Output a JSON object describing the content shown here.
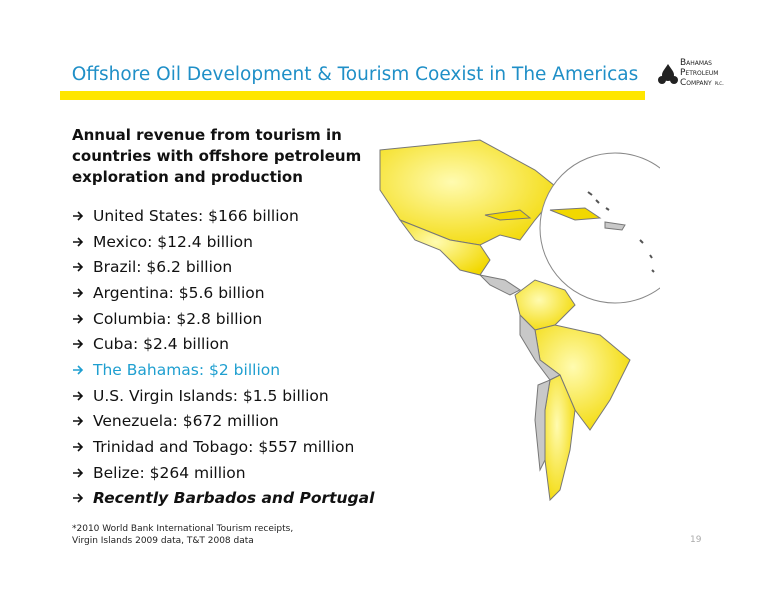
{
  "header": {
    "title": "Offshore Oil Development & Tourism Coexist in The Americas",
    "logo": [
      "Bahamas",
      "Petroleum",
      "Company",
      "plc."
    ]
  },
  "subheading": "Annual revenue from tourism in countries with offshore petroleum exploration and production",
  "bullets": [
    "United States: $166 billion",
    "Mexico: $12.4 billion",
    "Brazil: $6.2 billion",
    "Argentina: $5.6 billion",
    "Columbia: $2.8 billion",
    "Cuba: $2.4 billion",
    "The Bahamas: $2 billion",
    "U.S. Virgin Islands: $1.5 billion",
    "Venezuela: $672 million",
    "Trinidad and Tobago: $557 million",
    "Belize: $264 million",
    "Recently Barbados and Portugal"
  ],
  "footnote": [
    "*2010 World Bank International Tourism receipts,",
    "Virgin Islands 2009 data, T&T 2008 data"
  ],
  "page_number": "19"
}
